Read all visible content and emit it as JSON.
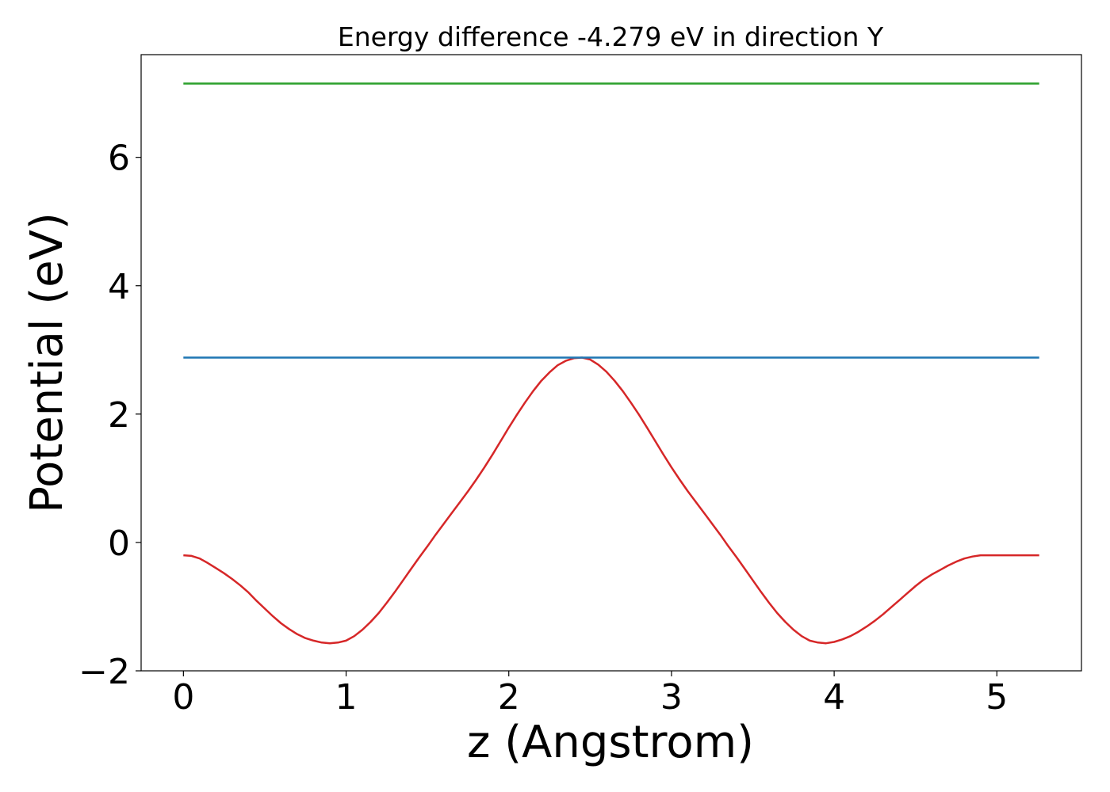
{
  "chart_data": {
    "type": "line",
    "title": "Energy difference -4.279 eV in direction Y",
    "xlabel": "z (Angstrom)",
    "ylabel": "Potential (eV)",
    "xlim": [
      -0.26,
      5.52
    ],
    "ylim": [
      -2.0,
      7.6
    ],
    "xticks": [
      0,
      1,
      2,
      3,
      4,
      5
    ],
    "xtick_labels": [
      "0",
      "1",
      "2",
      "3",
      "4",
      "5"
    ],
    "yticks": [
      -2,
      0,
      2,
      4,
      6
    ],
    "ytick_labels": [
      "−2",
      "0",
      "2",
      "4",
      "6"
    ],
    "grid": false,
    "series": [
      {
        "color": "#d62728",
        "x": [
          0,
          0.05,
          0.1,
          0.15,
          0.2,
          0.25,
          0.3,
          0.35,
          0.4,
          0.45,
          0.5,
          0.55,
          0.6,
          0.65,
          0.7,
          0.75,
          0.8,
          0.85,
          0.9,
          0.95,
          1.0,
          1.05,
          1.1,
          1.15,
          1.2,
          1.25,
          1.3,
          1.35,
          1.4,
          1.45,
          1.5,
          1.55,
          1.6,
          1.65,
          1.7,
          1.75,
          1.8,
          1.85,
          1.9,
          1.95,
          2.0,
          2.05,
          2.1,
          2.15,
          2.2,
          2.25,
          2.3,
          2.35,
          2.4,
          2.45,
          2.5,
          2.55,
          2.6,
          2.65,
          2.7,
          2.75,
          2.8,
          2.85,
          2.9,
          2.95,
          3.0,
          3.05,
          3.1,
          3.15,
          3.2,
          3.25,
          3.3,
          3.35,
          3.4,
          3.45,
          3.5,
          3.55,
          3.6,
          3.65,
          3.7,
          3.75,
          3.8,
          3.85,
          3.9,
          3.95,
          4.0,
          4.05,
          4.1,
          4.15,
          4.2,
          4.25,
          4.3,
          4.35,
          4.4,
          4.45,
          4.5,
          4.55,
          4.6,
          4.65,
          4.7,
          4.75,
          4.8,
          4.85,
          4.9,
          4.95,
          5.0,
          5.05,
          5.1,
          5.15,
          5.2,
          5.26
        ],
        "y": [
          -0.2,
          -0.21,
          -0.25,
          -0.32,
          -0.4,
          -0.48,
          -0.57,
          -0.67,
          -0.78,
          -0.91,
          -1.03,
          -1.15,
          -1.26,
          -1.35,
          -1.43,
          -1.49,
          -1.53,
          -1.56,
          -1.57,
          -1.56,
          -1.53,
          -1.46,
          -1.36,
          -1.24,
          -1.1,
          -0.94,
          -0.77,
          -0.59,
          -0.41,
          -0.23,
          -0.06,
          0.12,
          0.29,
          0.46,
          0.63,
          0.8,
          0.98,
          1.17,
          1.37,
          1.58,
          1.79,
          1.99,
          2.18,
          2.36,
          2.52,
          2.65,
          2.76,
          2.83,
          2.87,
          2.88,
          2.85,
          2.77,
          2.66,
          2.52,
          2.36,
          2.18,
          1.99,
          1.79,
          1.58,
          1.37,
          1.17,
          0.98,
          0.8,
          0.63,
          0.46,
          0.29,
          0.12,
          -0.06,
          -0.23,
          -0.41,
          -0.59,
          -0.77,
          -0.94,
          -1.1,
          -1.24,
          -1.36,
          -1.46,
          -1.53,
          -1.56,
          -1.57,
          -1.55,
          -1.51,
          -1.46,
          -1.39,
          -1.31,
          -1.22,
          -1.12,
          -1.01,
          -0.9,
          -0.79,
          -0.68,
          -0.58,
          -0.5,
          -0.43,
          -0.36,
          -0.3,
          -0.25,
          -0.22,
          -0.2,
          -0.2,
          -0.2,
          -0.2,
          -0.2,
          -0.2,
          -0.2,
          -0.2
        ]
      },
      {
        "color": "#1f77b4",
        "x": [
          0,
          5.26
        ],
        "y": [
          2.88,
          2.88
        ]
      },
      {
        "color": "#2ca02c",
        "x": [
          0,
          5.26
        ],
        "y": [
          7.15,
          7.15
        ]
      }
    ]
  }
}
